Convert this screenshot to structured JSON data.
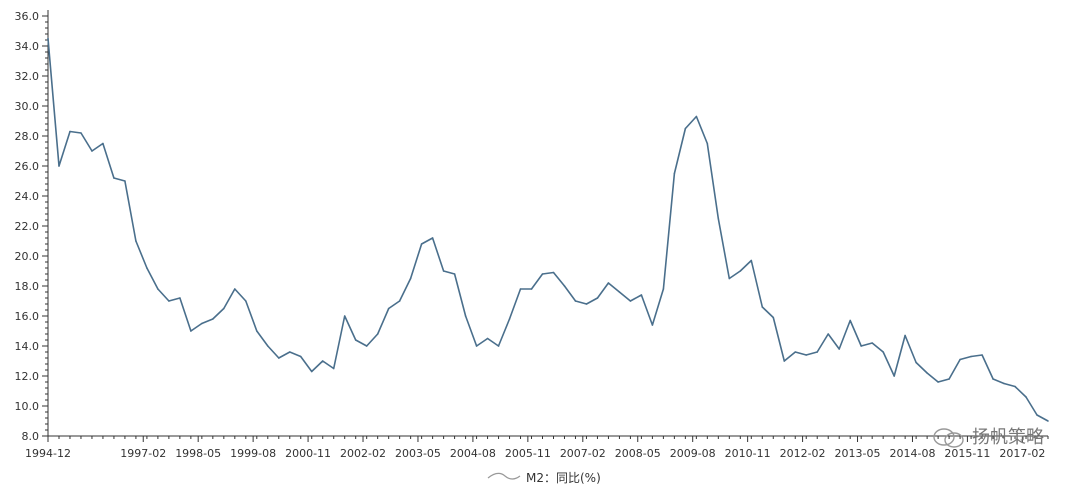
{
  "chart_data": {
    "type": "line",
    "title": "",
    "xlabel": "",
    "ylabel": "",
    "ylim": [
      8.0,
      36.0
    ],
    "yticks": [
      "8.0",
      "10.0",
      "12.0",
      "14.0",
      "16.0",
      "18.0",
      "20.0",
      "22.0",
      "24.0",
      "26.0",
      "28.0",
      "30.0",
      "32.0",
      "34.0",
      "36.0"
    ],
    "xticks": [
      "1994-12",
      "1997-02",
      "1998-05",
      "1999-08",
      "2000-11",
      "2002-02",
      "2003-05",
      "2004-08",
      "2005-11",
      "2007-02",
      "2008-05",
      "2009-08",
      "2010-11",
      "2012-02",
      "2013-05",
      "2014-08",
      "2015-11",
      "2017-02"
    ],
    "legend": {
      "position": "bottom-center",
      "label": "M2：同比(%)"
    },
    "line_color": "#4a6f8c",
    "series": [
      {
        "name": "M2：同比(%)",
        "x": [
          "1994-12",
          "1995-03",
          "1995-06",
          "1995-09",
          "1995-12",
          "1996-03",
          "1996-06",
          "1996-09",
          "1996-12",
          "1997-03",
          "1997-06",
          "1997-09",
          "1997-12",
          "1998-03",
          "1998-06",
          "1998-09",
          "1998-12",
          "1999-03",
          "1999-06",
          "1999-09",
          "1999-12",
          "2000-03",
          "2000-06",
          "2000-09",
          "2000-12",
          "2001-03",
          "2001-06",
          "2001-09",
          "2001-12",
          "2002-03",
          "2002-06",
          "2002-09",
          "2002-12",
          "2003-03",
          "2003-06",
          "2003-09",
          "2003-12",
          "2004-03",
          "2004-06",
          "2004-09",
          "2004-12",
          "2005-03",
          "2005-06",
          "2005-09",
          "2005-12",
          "2006-03",
          "2006-06",
          "2006-09",
          "2006-12",
          "2007-03",
          "2007-06",
          "2007-09",
          "2007-12",
          "2008-03",
          "2008-06",
          "2008-09",
          "2008-12",
          "2009-03",
          "2009-06",
          "2009-09",
          "2009-12",
          "2010-03",
          "2010-06",
          "2010-09",
          "2010-12",
          "2011-03",
          "2011-06",
          "2011-09",
          "2011-12",
          "2012-03",
          "2012-06",
          "2012-09",
          "2012-12",
          "2013-03",
          "2013-06",
          "2013-09",
          "2013-12",
          "2014-03",
          "2014-06",
          "2014-09",
          "2014-12",
          "2015-03",
          "2015-06",
          "2015-09",
          "2015-12",
          "2016-03",
          "2016-06",
          "2016-09",
          "2016-12",
          "2017-03",
          "2017-06",
          "2017-09"
        ],
        "values": [
          34.5,
          26.0,
          28.3,
          28.2,
          27.0,
          27.5,
          25.2,
          25.0,
          21.0,
          19.2,
          17.8,
          17.0,
          17.2,
          15.0,
          15.5,
          15.8,
          16.5,
          17.8,
          17.0,
          15.0,
          14.0,
          13.2,
          13.6,
          13.3,
          12.3,
          13.0,
          12.5,
          16.0,
          14.4,
          14.0,
          14.8,
          16.5,
          17.0,
          18.5,
          20.8,
          21.2,
          19.0,
          18.8,
          16.0,
          14.0,
          14.5,
          14.0,
          15.8,
          17.8,
          17.8,
          18.8,
          18.9,
          18.0,
          17.0,
          16.8,
          17.2,
          18.2,
          17.6,
          17.0,
          17.4,
          15.4,
          17.8,
          25.5,
          28.5,
          29.3,
          27.5,
          22.5,
          18.5,
          19.0,
          19.7,
          16.6,
          15.9,
          13.0,
          13.6,
          13.4,
          13.6,
          14.8,
          13.8,
          15.7,
          14.0,
          14.2,
          13.6,
          12.0,
          14.7,
          12.9,
          12.2,
          11.6,
          11.8,
          13.1,
          13.3,
          13.4,
          11.8,
          11.5,
          11.3,
          10.6,
          9.4,
          9.0
        ]
      }
    ]
  },
  "watermark": {
    "text": "扬帆策略",
    "icon": "wechat-icon"
  }
}
